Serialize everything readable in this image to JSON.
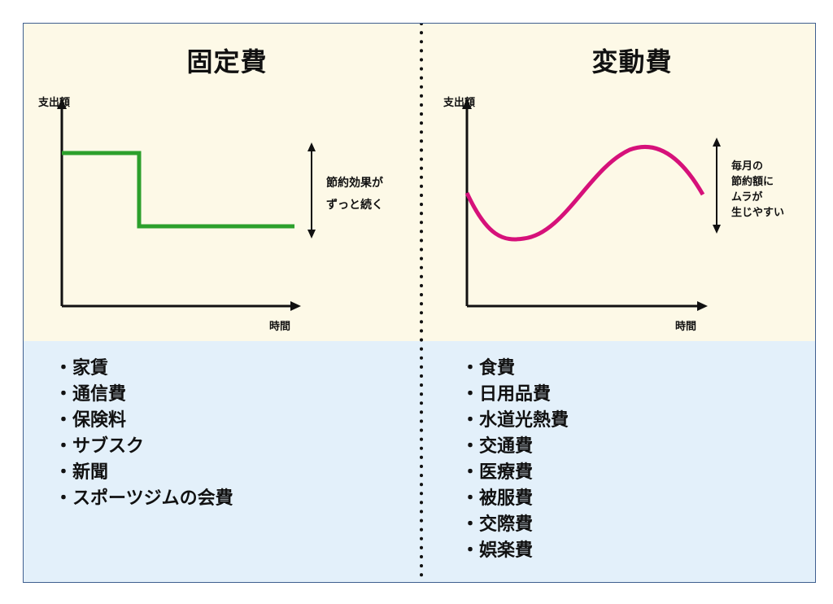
{
  "left_panel": {
    "title": "固定費",
    "y_axis_label": "支出額",
    "x_axis_label": "時間",
    "annotation_lines": [
      "節約効果が",
      "ずっと続く"
    ],
    "line_color": "#2ca02c",
    "items": [
      "家賃",
      "通信費",
      "保険料",
      "サブスク",
      "新聞",
      "スポーツジムの会費"
    ]
  },
  "right_panel": {
    "title": "変動費",
    "y_axis_label": "支出額",
    "x_axis_label": "時間",
    "annotation_lines": [
      "毎月の",
      "節約額に",
      "ムラが",
      "生じやすい"
    ],
    "line_color": "#d6117a",
    "items": [
      "食費",
      "日用品費",
      "水道光熱費",
      "交通費",
      "医療費",
      "被服費",
      "交際費",
      "娯楽費"
    ]
  },
  "colors": {
    "top_background": "#fdf9e7",
    "bottom_background": "#e3f0fa",
    "border": "#3f5f8f"
  }
}
